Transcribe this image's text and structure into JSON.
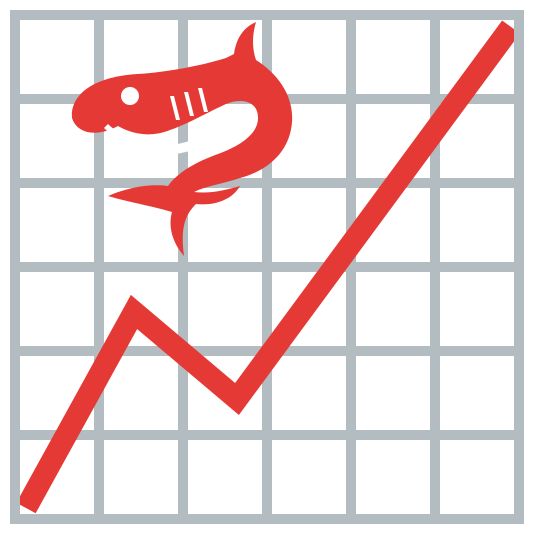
{
  "logo": {
    "grid_color": "#b2bcc1",
    "line_color": "#e53935",
    "background": "#ffffff",
    "grid": {
      "columns": 6,
      "rows": 6
    },
    "icons": [
      "shark-icon",
      "trend-line-icon"
    ]
  }
}
